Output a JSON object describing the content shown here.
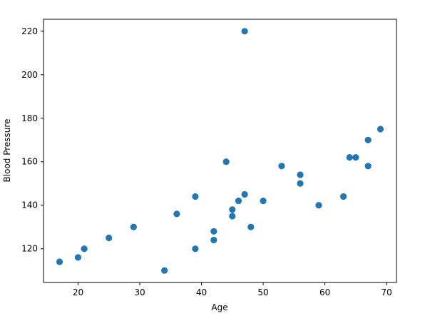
{
  "chart_data": {
    "type": "scatter",
    "title": "",
    "xlabel": "Age",
    "ylabel": "Blood Pressure",
    "xlim": [
      14.4,
      71.6
    ],
    "ylim": [
      104.5,
      225.5
    ],
    "xticks": [
      20,
      30,
      40,
      50,
      60,
      70
    ],
    "yticks": [
      120,
      140,
      160,
      180,
      200,
      220
    ],
    "grid": false,
    "marker_color": "#1f77b4",
    "series": [
      {
        "points": [
          {
            "x": 17,
            "y": 114
          },
          {
            "x": 20,
            "y": 116
          },
          {
            "x": 21,
            "y": 120
          },
          {
            "x": 25,
            "y": 125
          },
          {
            "x": 29,
            "y": 130
          },
          {
            "x": 34,
            "y": 110
          },
          {
            "x": 36,
            "y": 136
          },
          {
            "x": 39,
            "y": 120
          },
          {
            "x": 39,
            "y": 144
          },
          {
            "x": 42,
            "y": 124
          },
          {
            "x": 42,
            "y": 128
          },
          {
            "x": 44,
            "y": 160
          },
          {
            "x": 45,
            "y": 135
          },
          {
            "x": 45,
            "y": 138
          },
          {
            "x": 46,
            "y": 142
          },
          {
            "x": 47,
            "y": 145
          },
          {
            "x": 47,
            "y": 220
          },
          {
            "x": 48,
            "y": 130
          },
          {
            "x": 50,
            "y": 142
          },
          {
            "x": 53,
            "y": 158
          },
          {
            "x": 56,
            "y": 150
          },
          {
            "x": 56,
            "y": 154
          },
          {
            "x": 59,
            "y": 140
          },
          {
            "x": 63,
            "y": 144
          },
          {
            "x": 64,
            "y": 162
          },
          {
            "x": 65,
            "y": 162
          },
          {
            "x": 67,
            "y": 158
          },
          {
            "x": 67,
            "y": 170
          },
          {
            "x": 69,
            "y": 175
          }
        ]
      }
    ]
  }
}
